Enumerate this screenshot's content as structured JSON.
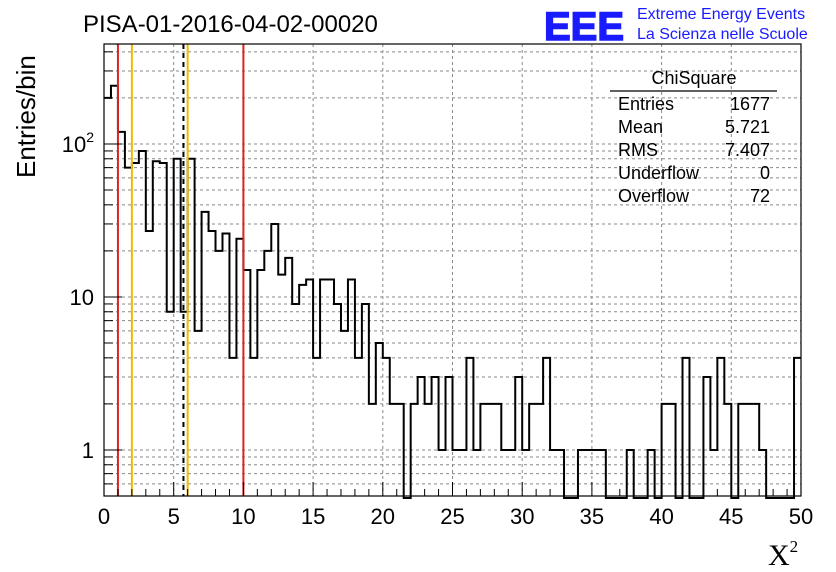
{
  "chart_data": {
    "type": "histogram",
    "title": "PISA-01-2016-04-02-00020",
    "xlabel": "X",
    "xlabel_sup": "2",
    "ylabel": "Entries/bin",
    "xlim": [
      0,
      50
    ],
    "ylim": [
      0.5,
      450
    ],
    "log_y": true,
    "grid": true,
    "bin_width": 0.5,
    "x_ticks": [
      "0",
      "5",
      "10",
      "15",
      "20",
      "25",
      "30",
      "35",
      "40",
      "45",
      "50"
    ],
    "y_ticks": [
      {
        "value": 1,
        "label": "1"
      },
      {
        "value": 10,
        "label": "10"
      },
      {
        "value": 100,
        "label": "10",
        "sup": "2"
      }
    ],
    "bin_values": [
      200,
      240,
      120,
      70,
      75,
      90,
      27,
      77,
      75,
      8,
      80,
      8,
      80,
      6,
      36,
      27,
      20,
      26,
      4,
      24,
      15,
      4,
      15,
      20,
      30,
      14,
      18,
      9,
      12,
      13,
      4,
      13,
      13,
      9,
      6,
      13,
      4,
      9,
      2,
      5,
      4,
      2,
      2,
      0,
      2,
      3,
      2,
      3,
      1,
      3,
      1,
      1,
      4,
      1,
      2,
      2,
      2,
      1,
      1,
      3,
      1,
      2,
      2,
      4,
      1,
      1,
      0,
      0,
      1,
      1,
      1,
      1,
      0,
      0,
      0,
      1,
      0,
      0,
      1,
      0,
      2,
      2,
      0,
      4,
      0,
      0,
      3,
      1,
      4,
      2,
      0,
      2,
      2,
      2,
      1,
      0,
      0,
      0,
      0,
      4
    ],
    "vertical_lines": [
      {
        "x": 1.0,
        "color": "#dd2222",
        "style": "solid"
      },
      {
        "x": 2.0,
        "color": "#eebb00",
        "style": "solid"
      },
      {
        "x": 5.7,
        "color": "#000000",
        "style": "dashed"
      },
      {
        "x": 6.0,
        "color": "#eebb00",
        "style": "solid"
      },
      {
        "x": 10.0,
        "color": "#dd2222",
        "style": "solid"
      }
    ],
    "stats": {
      "title": "ChiSquare",
      "rows": [
        {
          "label": "Entries",
          "value": "1677"
        },
        {
          "label": "Mean",
          "value": "5.721"
        },
        {
          "label": "RMS",
          "value": "7.407"
        },
        {
          "label": "Underflow",
          "value": "0"
        },
        {
          "label": "Overflow",
          "value": "72"
        }
      ]
    }
  },
  "logo": {
    "mark": "EEE",
    "line1": "Extreme Energy Events",
    "line2": "La Scienza nelle Scuole",
    "color": "#1a1aff"
  }
}
